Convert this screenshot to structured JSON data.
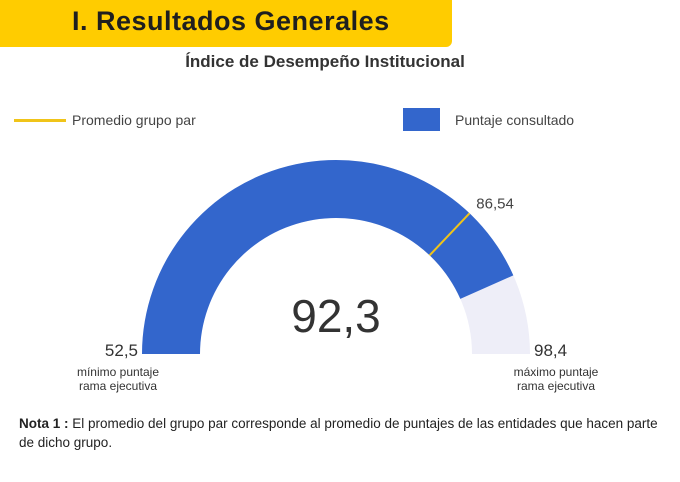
{
  "header": {
    "title": "I. Resultados Generales"
  },
  "colors": {
    "header_band": "#FFCC00",
    "gauge_fill": "#3366CC",
    "gauge_track": "#EEEEF8",
    "average_marker": "#F0C419"
  },
  "chart_data": {
    "type": "gauge",
    "title": "Índice de Desempeño Institucional",
    "min": 52.5,
    "max": 98.4,
    "value": 92.3,
    "average": 86.54,
    "value_label": "92,3",
    "min_label": "52,5",
    "max_label": "98,4",
    "average_label": "86,54",
    "min_caption": [
      "mínimo puntaje",
      "rama ejecutiva"
    ],
    "max_caption": [
      "máximo puntaje",
      "rama ejecutiva"
    ],
    "legend": [
      {
        "name": "Promedio grupo par",
        "kind": "line"
      },
      {
        "name": "Puntaje consultado",
        "kind": "box"
      }
    ]
  },
  "note": {
    "label": "Nota 1 :",
    "text": " El promedio del grupo par corresponde al promedio de puntajes de las entidades que hacen parte de dicho grupo."
  }
}
